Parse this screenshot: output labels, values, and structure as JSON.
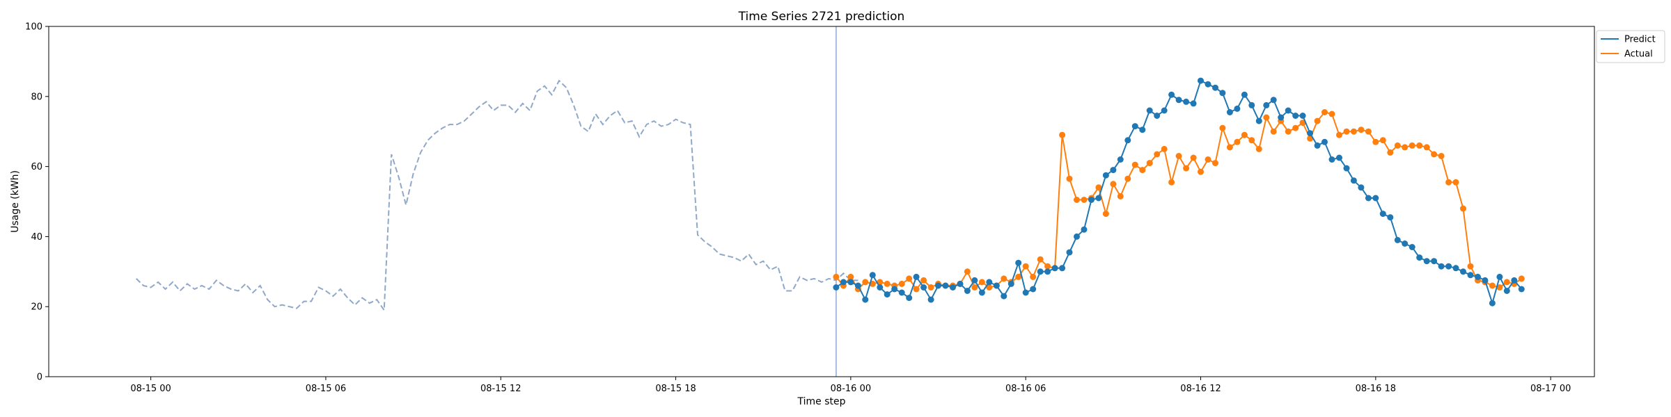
{
  "chart_data": {
    "type": "line",
    "title": "Time Series 2721 prediction",
    "xlabel": "Time step",
    "ylabel": "Usage (kWh)",
    "ylim": [
      0,
      100
    ],
    "yticks": [
      0,
      20,
      40,
      60,
      80,
      100
    ],
    "xlim": [
      "2024-08-14 20:30",
      "2024-08-17 01:30"
    ],
    "xticks": [
      {
        "t": "2024-08-15 00:00",
        "label": "08-15 00"
      },
      {
        "t": "2024-08-15 06:00",
        "label": "08-15 06"
      },
      {
        "t": "2024-08-15 12:00",
        "label": "08-15 12"
      },
      {
        "t": "2024-08-15 18:00",
        "label": "08-15 18"
      },
      {
        "t": "2024-08-16 00:00",
        "label": "08-16 00"
      },
      {
        "t": "2024-08-16 06:00",
        "label": "08-16 06"
      },
      {
        "t": "2024-08-16 12:00",
        "label": "08-16 12"
      },
      {
        "t": "2024-08-16 18:00",
        "label": "08-16 18"
      },
      {
        "t": "2024-08-17 00:00",
        "label": "08-17 00"
      }
    ],
    "interval_minutes": 15,
    "history_start": "2024-08-14 23:30",
    "history": [
      28,
      26,
      25.5,
      27,
      25,
      27,
      24.5,
      26.5,
      25,
      26,
      25,
      27.5,
      26,
      25,
      24.5,
      26.5,
      24,
      26,
      22,
      20,
      20.5,
      20,
      19.5,
      21.5,
      21.5,
      25.5,
      24.5,
      23,
      25,
      22.5,
      20.5,
      22.5,
      21,
      22,
      19,
      63.5,
      57,
      49,
      58,
      64,
      67.5,
      69.5,
      71,
      72,
      72,
      73,
      75,
      77,
      78.5,
      76,
      77.5,
      77.5,
      75.5,
      78,
      76,
      81.5,
      83,
      80.5,
      84.5,
      82.5,
      77.5,
      71.5,
      70,
      75,
      72,
      74.5,
      76,
      72.5,
      73,
      68.5,
      72,
      73,
      71.5,
      72,
      73.5,
      72.5,
      72,
      40.5,
      38.5,
      37,
      35,
      34.5,
      34,
      33,
      35,
      32,
      33,
      30.5,
      31.5,
      24.5,
      24.5,
      28.5,
      27.5,
      28,
      27,
      28,
      27.5,
      29.5,
      27.5,
      27.5
    ],
    "forecast_start": "2024-08-15 23:30",
    "vline": "2024-08-15 23:30",
    "series": [
      {
        "name": "Predict",
        "color": "#1f77b4",
        "values": [
          25.5,
          27,
          27,
          26,
          22,
          29,
          25.5,
          23.5,
          25,
          24,
          22.5,
          28.5,
          25.5,
          22,
          26,
          26,
          25.5,
          26.5,
          24.5,
          27.5,
          24,
          27,
          26,
          23,
          26.5,
          32.5,
          24,
          25,
          30,
          30,
          31,
          31,
          35.5,
          40,
          42,
          50.5,
          51,
          57.5,
          59,
          62,
          67.5,
          71.5,
          70.5,
          76,
          74.5,
          76,
          80.5,
          79,
          78.5,
          78,
          84.5,
          83.5,
          82.5,
          81,
          75.5,
          76.5,
          80.5,
          77.5,
          73,
          77.5,
          79,
          74,
          76,
          74.5,
          74.5,
          69.5,
          66,
          67,
          62,
          62.5,
          59.5,
          56,
          54,
          51,
          51,
          46.5,
          45.5,
          39,
          38,
          37,
          34,
          33,
          33,
          31.5,
          31.5,
          31,
          30,
          29,
          28.5,
          27.5,
          21,
          28.5,
          24.5,
          27.5,
          25
        ]
      },
      {
        "name": "Actual",
        "color": "#ff7f0e",
        "values": [
          28.5,
          26,
          28.5,
          25,
          27,
          26.5,
          27,
          26.5,
          26,
          26.5,
          28,
          25,
          27.5,
          25.5,
          26.5,
          26,
          26,
          26.5,
          30,
          25.5,
          27,
          25.5,
          26,
          28,
          27,
          28.5,
          31.5,
          28.5,
          33.5,
          31.5,
          31,
          69,
          56.5,
          50.5,
          50.5,
          51,
          54,
          46.5,
          55,
          51.5,
          56.5,
          60.5,
          59,
          61,
          63.5,
          65,
          55.5,
          63,
          59.5,
          62.5,
          58.5,
          62,
          61,
          71,
          65.5,
          67,
          69,
          67.5,
          65,
          74,
          70,
          73,
          70,
          71,
          72.5,
          68,
          73,
          75.5,
          75,
          69,
          70,
          70,
          70.5,
          70,
          67,
          67.5,
          64,
          66,
          65.5,
          66,
          66,
          65.5,
          63.5,
          63,
          55.5,
          55.5,
          48,
          31.5,
          27.5,
          27,
          26,
          25.5,
          27,
          26.5,
          28
        ]
      }
    ],
    "legend": [
      "Predict",
      "Actual"
    ],
    "legend_position": "top-right",
    "history_color": "#8fa8c8",
    "vline_color": "#8fa8d8",
    "grid": false
  }
}
